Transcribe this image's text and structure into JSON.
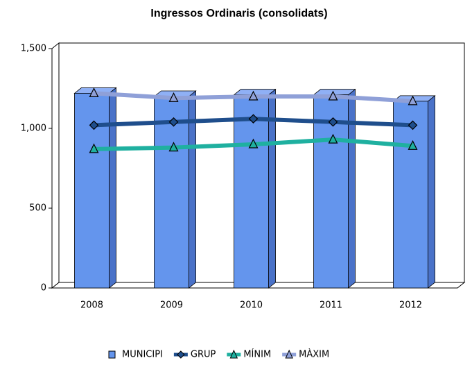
{
  "chart_data": {
    "type": "bar_line",
    "title": "Ingressos Ordinaris (consolidats)",
    "categories": [
      "2008",
      "2009",
      "2010",
      "2011",
      "2012"
    ],
    "series": [
      {
        "name": "MUNICIPI",
        "color": "#6495ed",
        "type": "bar",
        "values": [
          1220,
          1200,
          1210,
          1210,
          1170
        ]
      },
      {
        "name": "GRUP",
        "color": "#1f4e8c",
        "type": "line",
        "marker": "diamond",
        "values": [
          1020,
          1040,
          1060,
          1040,
          1020
        ]
      },
      {
        "name": "MÍNIM",
        "color": "#1fb0a0",
        "type": "line",
        "marker": "triangle",
        "values": [
          870,
          880,
          900,
          930,
          890
        ]
      },
      {
        "name": "MÀXIM",
        "color": "#8fa0d8",
        "type": "line",
        "marker": "triangle",
        "values": [
          1220,
          1190,
          1200,
          1200,
          1170
        ]
      }
    ],
    "ylim": [
      0,
      1500
    ],
    "yticks": [
      0,
      500,
      {
        "value": 1000,
        "label": "1,000"
      },
      {
        "value": 1500,
        "label": "1,500"
      }
    ],
    "legend": "bottom"
  }
}
